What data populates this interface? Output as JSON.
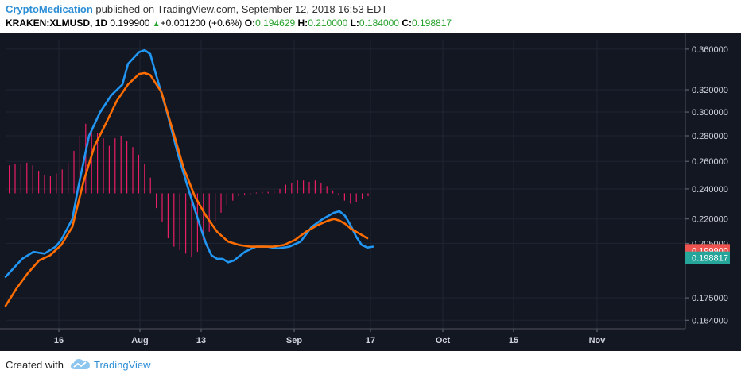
{
  "header": {
    "author": "CryptoMedication",
    "published_text": "published on TradingView.com, September 12, 2018 16:53 EDT",
    "symbol": "KRAKEN:XLMUSD, 1D",
    "last": "0.199900",
    "change": "+0.001200 (+0.6%)",
    "open_label": "O:",
    "open": "0.194629",
    "high_label": "H:",
    "high": "0.210000",
    "low_label": "L:",
    "low": "0.184000",
    "close_label": "C:",
    "close": "0.198817"
  },
  "footer": {
    "created_with": "Created with",
    "brand": "TradingView"
  },
  "colors": {
    "background": "#131722",
    "fast_ma": "#2196f3",
    "slow_ma": "#ff6d00",
    "histogram": "#e91e63",
    "price_badge": "#ef5350",
    "close_badge": "#26a69a"
  },
  "chart_data": {
    "type": "line",
    "price_axis": {
      "ticks": [
        "0.360000",
        "0.320000",
        "0.300000",
        "0.280000",
        "0.260000",
        "0.240000",
        "0.220000",
        "0.205000",
        "0.175000",
        "0.164000"
      ],
      "scale": "log",
      "ylim": [
        0.16,
        0.37
      ]
    },
    "time_axis": {
      "ticks": [
        "16",
        "Aug",
        "13",
        "Sep",
        "17",
        "Oct",
        "15",
        "Nov"
      ]
    },
    "badges": [
      {
        "name": "last",
        "value": "0.199900"
      },
      {
        "name": "close",
        "value": "0.198817"
      }
    ],
    "series": [
      {
        "color": "#2196f3",
        "points": [
          [
            0,
            0.186
          ],
          [
            3,
            0.196
          ],
          [
            5,
            0.2
          ],
          [
            7,
            0.199
          ],
          [
            9,
            0.203
          ],
          [
            10,
            0.207
          ],
          [
            12,
            0.22
          ],
          [
            13,
            0.24
          ],
          [
            15,
            0.28
          ],
          [
            17,
            0.3
          ],
          [
            19,
            0.315
          ],
          [
            21,
            0.325
          ],
          [
            22,
            0.345
          ],
          [
            24,
            0.357
          ],
          [
            25,
            0.359
          ],
          [
            26,
            0.355
          ],
          [
            27,
            0.335
          ],
          [
            29,
            0.3
          ],
          [
            31,
            0.265
          ],
          [
            33,
            0.238
          ],
          [
            35,
            0.215
          ],
          [
            36,
            0.205
          ],
          [
            37,
            0.198
          ],
          [
            38,
            0.196
          ],
          [
            39,
            0.196
          ],
          [
            40,
            0.194
          ],
          [
            41,
            0.195
          ],
          [
            43,
            0.2
          ],
          [
            45,
            0.203
          ],
          [
            47,
            0.203
          ],
          [
            49,
            0.202
          ],
          [
            51,
            0.203
          ],
          [
            53,
            0.206
          ],
          [
            55,
            0.215
          ],
          [
            57,
            0.22
          ],
          [
            59,
            0.224
          ],
          [
            60,
            0.225
          ],
          [
            61,
            0.222
          ],
          [
            62,
            0.216
          ],
          [
            63,
            0.209
          ],
          [
            64,
            0.204
          ],
          [
            65,
            0.2025
          ],
          [
            66,
            0.203
          ]
        ]
      },
      {
        "color": "#ff6d00",
        "points": [
          [
            0,
            0.171
          ],
          [
            2,
            0.18
          ],
          [
            4,
            0.188
          ],
          [
            6,
            0.195
          ],
          [
            8,
            0.198
          ],
          [
            10,
            0.204
          ],
          [
            12,
            0.215
          ],
          [
            14,
            0.245
          ],
          [
            16,
            0.272
          ],
          [
            18,
            0.29
          ],
          [
            20,
            0.31
          ],
          [
            22,
            0.325
          ],
          [
            24,
            0.335
          ],
          [
            25,
            0.336
          ],
          [
            26,
            0.334
          ],
          [
            28,
            0.318
          ],
          [
            30,
            0.285
          ],
          [
            32,
            0.255
          ],
          [
            34,
            0.235
          ],
          [
            36,
            0.222
          ],
          [
            38,
            0.212
          ],
          [
            40,
            0.206
          ],
          [
            42,
            0.204
          ],
          [
            44,
            0.203
          ],
          [
            46,
            0.203
          ],
          [
            48,
            0.203
          ],
          [
            50,
            0.204
          ],
          [
            52,
            0.207
          ],
          [
            54,
            0.212
          ],
          [
            56,
            0.216
          ],
          [
            58,
            0.219
          ],
          [
            59,
            0.22
          ],
          [
            60,
            0.219
          ],
          [
            61,
            0.217
          ],
          [
            62,
            0.214
          ],
          [
            64,
            0.21
          ],
          [
            65,
            0.208
          ]
        ]
      }
    ],
    "histogram": {
      "color": "#e91e63",
      "zero_value": 0.237,
      "values": [
        0.257,
        0.258,
        0.258,
        0.259,
        0.257,
        0.253,
        0.25,
        0.249,
        0.251,
        0.254,
        0.259,
        0.268,
        0.28,
        0.29,
        0.285,
        0.282,
        0.278,
        0.272,
        0.278,
        0.28,
        0.276,
        0.271,
        0.265,
        0.258,
        0.248,
        0.227,
        0.218,
        0.208,
        0.203,
        0.201,
        0.199,
        0.197,
        0.2,
        0.207,
        0.212,
        0.218,
        0.224,
        0.229,
        0.232,
        0.235,
        0.236,
        0.2365,
        0.2375,
        0.238,
        0.238,
        0.2385,
        0.24,
        0.243,
        0.244,
        0.246,
        0.246,
        0.245,
        0.246,
        0.244,
        0.242,
        0.239,
        0.236,
        0.232,
        0.23,
        0.231,
        0.233,
        0.235
      ]
    }
  }
}
